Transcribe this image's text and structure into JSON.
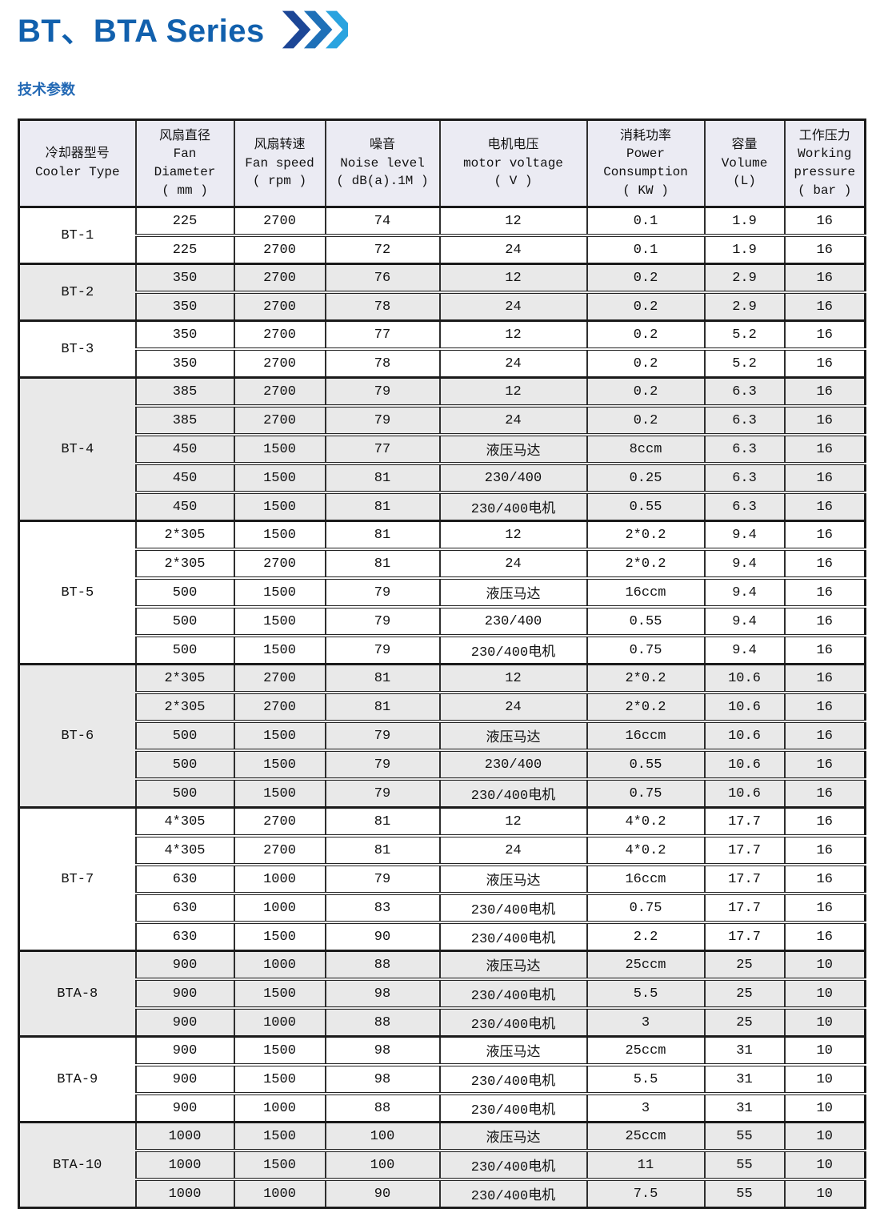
{
  "page": {
    "title": "BT、BTA Series",
    "section_label": "技术参数",
    "colors": {
      "title_blue": "#1160ad",
      "section_blue": "#2268b4",
      "chevron_dark": "#1c4696",
      "chevron_mid": "#1e70b8",
      "chevron_light": "#2aa3df",
      "header_bg": "#ebebf3",
      "shaded_row_bg": "#e9e9e9"
    },
    "title_arrow_icon": "triple-chevron-right"
  },
  "table": {
    "columns": [
      {
        "id": "cooler-type",
        "lines": [
          "冷却器型号",
          "Cooler Type"
        ]
      },
      {
        "id": "fan-diameter",
        "lines": [
          "风扇直径",
          "Fan",
          "Diameter",
          "( mm )"
        ]
      },
      {
        "id": "fan-speed",
        "lines": [
          "风扇转速",
          "Fan speed",
          "( rpm )"
        ]
      },
      {
        "id": "noise-level",
        "lines": [
          "噪音",
          "Noise level",
          "( dB(a).1M )"
        ]
      },
      {
        "id": "motor-voltage",
        "lines": [
          "电机电压",
          "motor voltage",
          "( V )"
        ]
      },
      {
        "id": "power-consumption",
        "lines": [
          "消耗功率",
          "Power",
          "Consumption",
          "( KW )"
        ]
      },
      {
        "id": "volume",
        "lines": [
          "容量",
          "Volume",
          "(L)"
        ]
      },
      {
        "id": "working-pressure",
        "lines": [
          "工作压力",
          "Working",
          "pressure",
          "( bar )"
        ]
      }
    ],
    "groups": [
      {
        "type": "BT-1",
        "shaded": false,
        "rows": [
          [
            "225",
            "2700",
            "74",
            "12",
            "0.1",
            "1.9",
            "16"
          ],
          [
            "225",
            "2700",
            "72",
            "24",
            "0.1",
            "1.9",
            "16"
          ]
        ]
      },
      {
        "type": "BT-2",
        "shaded": true,
        "rows": [
          [
            "350",
            "2700",
            "76",
            "12",
            "0.2",
            "2.9",
            "16"
          ],
          [
            "350",
            "2700",
            "78",
            "24",
            "0.2",
            "2.9",
            "16"
          ]
        ]
      },
      {
        "type": "BT-3",
        "shaded": false,
        "rows": [
          [
            "350",
            "2700",
            "77",
            "12",
            "0.2",
            "5.2",
            "16"
          ],
          [
            "350",
            "2700",
            "78",
            "24",
            "0.2",
            "5.2",
            "16"
          ]
        ]
      },
      {
        "type": "BT-4",
        "shaded": true,
        "rows": [
          [
            "385",
            "2700",
            "79",
            "12",
            "0.2",
            "6.3",
            "16"
          ],
          [
            "385",
            "2700",
            "79",
            "24",
            "0.2",
            "6.3",
            "16"
          ],
          [
            "450",
            "1500",
            "77",
            "液压马达",
            "8ccm",
            "6.3",
            "16"
          ],
          [
            "450",
            "1500",
            "81",
            "230/400",
            "0.25",
            "6.3",
            "16"
          ],
          [
            "450",
            "1500",
            "81",
            "230/400电机",
            "0.55",
            "6.3",
            "16"
          ]
        ]
      },
      {
        "type": "BT-5",
        "shaded": false,
        "rows": [
          [
            "2*305",
            "1500",
            "81",
            "12",
            "2*0.2",
            "9.4",
            "16"
          ],
          [
            "2*305",
            "2700",
            "81",
            "24",
            "2*0.2",
            "9.4",
            "16"
          ],
          [
            "500",
            "1500",
            "79",
            "液压马达",
            "16ccm",
            "9.4",
            "16"
          ],
          [
            "500",
            "1500",
            "79",
            "230/400",
            "0.55",
            "9.4",
            "16"
          ],
          [
            "500",
            "1500",
            "79",
            "230/400电机",
            "0.75",
            "9.4",
            "16"
          ]
        ]
      },
      {
        "type": "BT-6",
        "shaded": true,
        "rows": [
          [
            "2*305",
            "2700",
            "81",
            "12",
            "2*0.2",
            "10.6",
            "16"
          ],
          [
            "2*305",
            "2700",
            "81",
            "24",
            "2*0.2",
            "10.6",
            "16"
          ],
          [
            "500",
            "1500",
            "79",
            "液压马达",
            "16ccm",
            "10.6",
            "16"
          ],
          [
            "500",
            "1500",
            "79",
            "230/400",
            "0.55",
            "10.6",
            "16"
          ],
          [
            "500",
            "1500",
            "79",
            "230/400电机",
            "0.75",
            "10.6",
            "16"
          ]
        ]
      },
      {
        "type": "BT-7",
        "shaded": false,
        "rows": [
          [
            "4*305",
            "2700",
            "81",
            "12",
            "4*0.2",
            "17.7",
            "16"
          ],
          [
            "4*305",
            "2700",
            "81",
            "24",
            "4*0.2",
            "17.7",
            "16"
          ],
          [
            "630",
            "1000",
            "79",
            "液压马达",
            "16ccm",
            "17.7",
            "16"
          ],
          [
            "630",
            "1000",
            "83",
            "230/400电机",
            "0.75",
            "17.7",
            "16"
          ],
          [
            "630",
            "1500",
            "90",
            "230/400电机",
            "2.2",
            "17.7",
            "16"
          ]
        ]
      },
      {
        "type": "BTA-8",
        "shaded": true,
        "rows": [
          [
            "900",
            "1000",
            "88",
            "液压马达",
            "25ccm",
            "25",
            "10"
          ],
          [
            "900",
            "1500",
            "98",
            "230/400电机",
            "5.5",
            "25",
            "10"
          ],
          [
            "900",
            "1000",
            "88",
            "230/400电机",
            "3",
            "25",
            "10"
          ]
        ]
      },
      {
        "type": "BTA-9",
        "shaded": false,
        "rows": [
          [
            "900",
            "1500",
            "98",
            "液压马达",
            "25ccm",
            "31",
            "10"
          ],
          [
            "900",
            "1500",
            "98",
            "230/400电机",
            "5.5",
            "31",
            "10"
          ],
          [
            "900",
            "1000",
            "88",
            "230/400电机",
            "3",
            "31",
            "10"
          ]
        ]
      },
      {
        "type": "BTA-10",
        "shaded": true,
        "rows": [
          [
            "1000",
            "1500",
            "100",
            "液压马达",
            "25ccm",
            "55",
            "10"
          ],
          [
            "1000",
            "1500",
            "100",
            "230/400电机",
            "11",
            "55",
            "10"
          ],
          [
            "1000",
            "1000",
            "90",
            "230/400电机",
            "7.5",
            "55",
            "10"
          ]
        ]
      }
    ]
  }
}
